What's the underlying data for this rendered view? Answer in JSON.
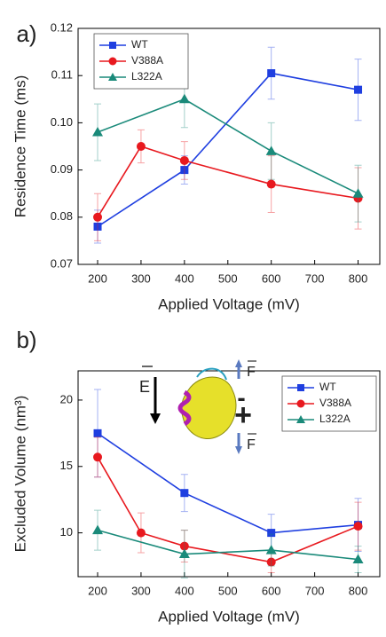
{
  "chart_data": [
    {
      "type": "line",
      "panel_label": "a)",
      "ylabel": "Residence Time (ms)",
      "xlabel": "Applied Voltage (mV)",
      "xlim": [
        155,
        850
      ],
      "xticks": [
        200,
        300,
        400,
        500,
        600,
        700,
        800
      ],
      "ylim": [
        0.07,
        0.12
      ],
      "yticks": [
        0.07,
        0.08,
        0.09,
        {
          "value": 0.1,
          "label": "0.10"
        },
        0.11,
        0.12
      ],
      "legend": "top-left",
      "series": [
        {
          "name": "WT",
          "color": "#1f3fe0",
          "marker": "square",
          "x": [
            200,
            400,
            600,
            800
          ],
          "values": [
            0.078,
            0.09,
            0.1105,
            0.107
          ],
          "errors": [
            0.0035,
            0.003,
            0.0055,
            0.0065
          ]
        },
        {
          "name": "V388A",
          "color": "#e8191f",
          "marker": "circle",
          "x": [
            200,
            300,
            400,
            600,
            800
          ],
          "values": [
            0.08,
            0.095,
            0.092,
            0.087,
            0.084
          ],
          "errors": [
            0.005,
            0.0035,
            0.004,
            0.006,
            0.0065
          ]
        },
        {
          "name": "L322A",
          "color": "#1a8a7a",
          "marker": "triangle",
          "x": [
            200,
            400,
            600,
            800
          ],
          "values": [
            0.098,
            0.105,
            0.094,
            0.085
          ],
          "errors": [
            0.006,
            0.006,
            0.006,
            0.006
          ]
        }
      ]
    },
    {
      "type": "line",
      "panel_label": "b)",
      "ylabel": "Excluded Volume (nm³)",
      "xlabel": "Applied Voltage (mV)",
      "xlim": [
        155,
        850
      ],
      "xticks": [
        200,
        300,
        400,
        500,
        600,
        700,
        800
      ],
      "ylim": [
        6.7,
        22.2
      ],
      "yticks": [
        10,
        15,
        20
      ],
      "legend": "top-right",
      "annotations": [
        "E",
        "F",
        "F",
        "-",
        "+"
      ],
      "series": [
        {
          "name": "WT",
          "color": "#1f3fe0",
          "marker": "square",
          "x": [
            200,
            400,
            600,
            800
          ],
          "values": [
            17.5,
            13.0,
            10.0,
            10.6
          ],
          "errors": [
            3.3,
            1.4,
            1.4,
            2.0
          ]
        },
        {
          "name": "V388A",
          "color": "#e8191f",
          "marker": "circle",
          "x": [
            200,
            300,
            400,
            600,
            800
          ],
          "values": [
            15.7,
            10.0,
            9.0,
            7.8,
            10.5
          ],
          "errors": [
            1.5,
            1.5,
            1.2,
            0.8,
            1.8
          ]
        },
        {
          "name": "L322A",
          "color": "#1a8a7a",
          "marker": "triangle",
          "x": [
            200,
            400,
            600,
            800
          ],
          "values": [
            10.2,
            8.4,
            8.7,
            8.0
          ],
          "errors": [
            1.5,
            1.8,
            1.2,
            1.0
          ]
        }
      ]
    }
  ]
}
